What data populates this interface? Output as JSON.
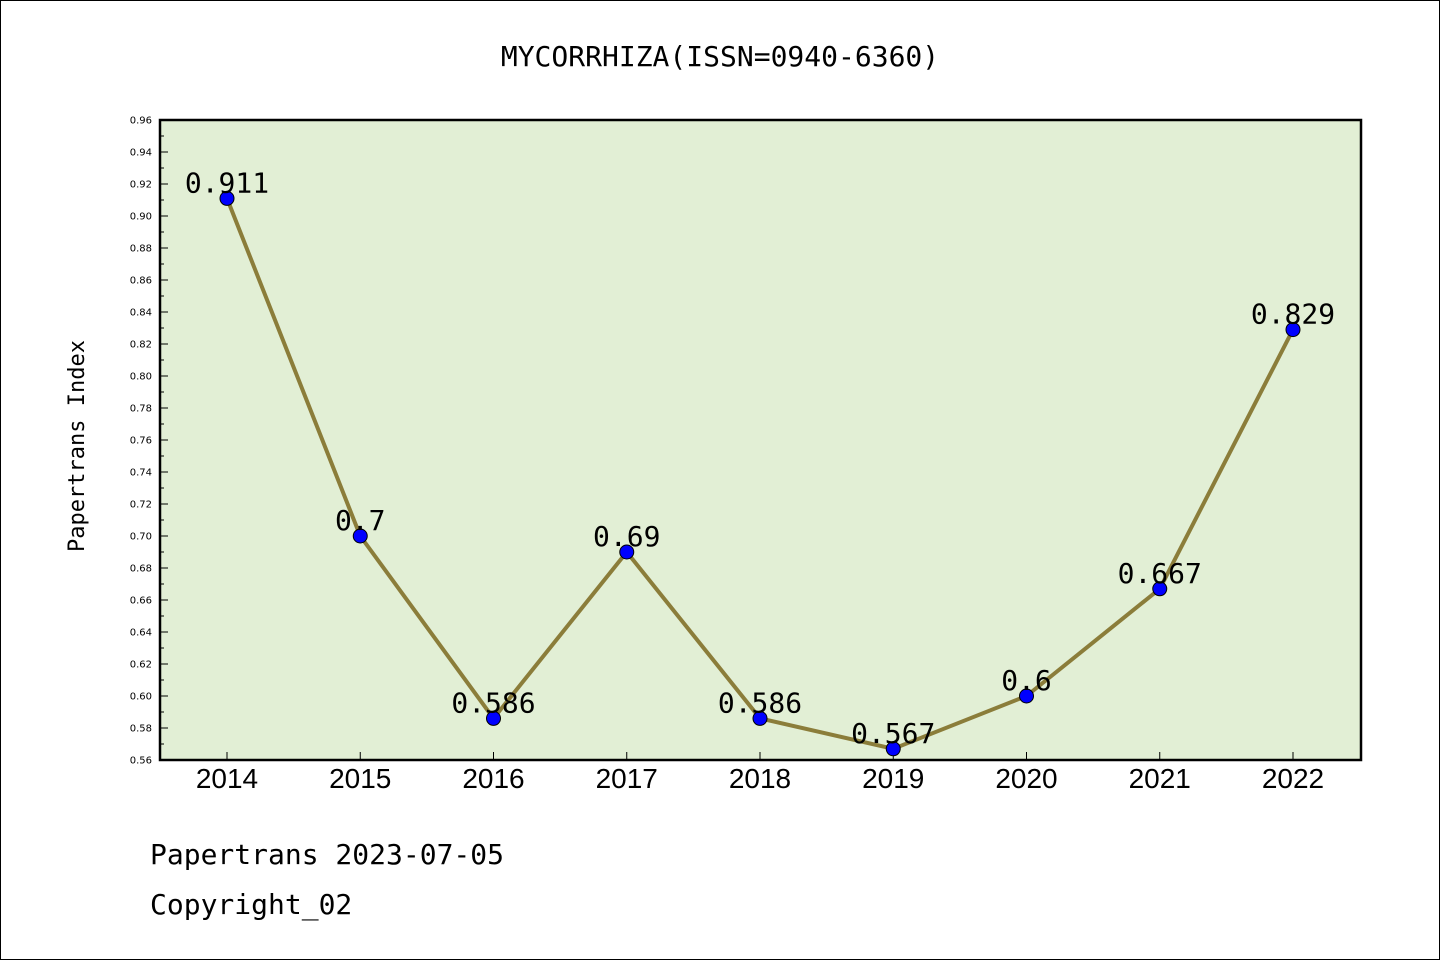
{
  "chart_data": {
    "type": "line",
    "title": "MYCORRHIZA(ISSN=0940-6360)",
    "ylabel": "Papertrans Index",
    "xlabel": "",
    "categories": [
      "2014",
      "2015",
      "2016",
      "2017",
      "2018",
      "2019",
      "2020",
      "2021",
      "2022"
    ],
    "series": [
      {
        "values": [
          0.911,
          0.7,
          0.586,
          0.69,
          0.586,
          0.567,
          0.6,
          0.667,
          0.829
        ],
        "labels": [
          "0.911",
          "0.7",
          "0.586",
          "0.69",
          "0.586",
          "0.567",
          "0.6",
          "0.667",
          "0.829"
        ]
      }
    ],
    "ylim": [
      0.56,
      0.96
    ],
    "yticks": [
      "0.56",
      "0.58",
      "0.60",
      "0.62",
      "0.64",
      "0.66",
      "0.68",
      "0.70",
      "0.72",
      "0.74",
      "0.76",
      "0.78",
      "0.80",
      "0.82",
      "0.84",
      "0.86",
      "0.88",
      "0.90",
      "0.92",
      "0.94",
      "0.96"
    ],
    "grid": false,
    "colors": {
      "line": "#8b7d3a",
      "marker": "#0000ff",
      "plot_bg": "#e2efd5"
    }
  },
  "footer": {
    "line1": "Papertrans 2023-07-05",
    "line2": "Copyright_02"
  }
}
